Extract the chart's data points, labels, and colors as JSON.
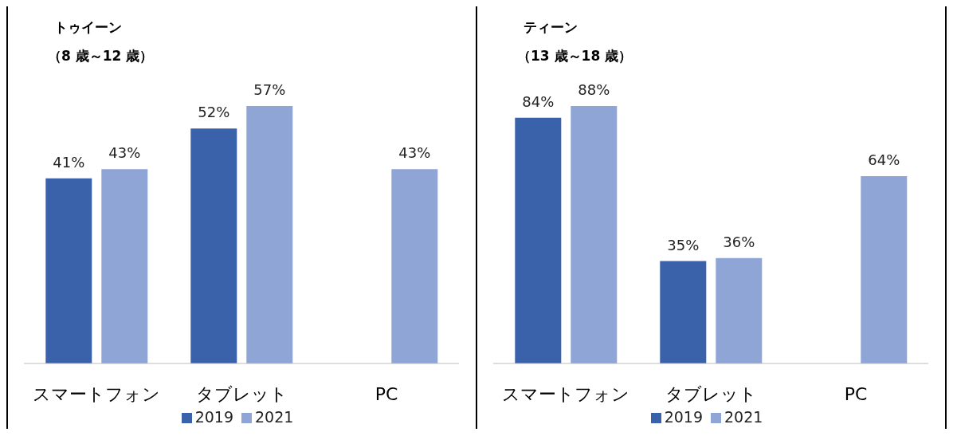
{
  "chart_data": [
    {
      "type": "bar",
      "title": "トゥイーン",
      "subtitle": "（8 歳～12 歳）",
      "categories": [
        "スマートフォン",
        "タブレット",
        "PC"
      ],
      "legend": "bottom",
      "series": [
        {
          "name": "2019",
          "color": "#3a62aa",
          "values": [
            41,
            52,
            null
          ],
          "value_labels": [
            "41%",
            "52%",
            null
          ]
        },
        {
          "name": "2021",
          "color": "#8fa5d6",
          "values": [
            43,
            57,
            43
          ],
          "value_labels": [
            "43%",
            "57%",
            "43%"
          ]
        }
      ]
    },
    {
      "type": "bar",
      "title": "ティーン",
      "subtitle": "（13 歳～18 歳）",
      "categories": [
        "スマートフォン",
        "タブレット",
        "PC"
      ],
      "legend": "bottom",
      "series": [
        {
          "name": "2019",
          "color": "#3a62aa",
          "values": [
            84,
            35,
            null
          ],
          "value_labels": [
            "84%",
            "35%",
            null
          ]
        },
        {
          "name": "2021",
          "color": "#8fa5d6",
          "values": [
            88,
            36,
            64
          ],
          "value_labels": [
            "88%",
            "36%",
            "64%"
          ]
        }
      ]
    }
  ]
}
